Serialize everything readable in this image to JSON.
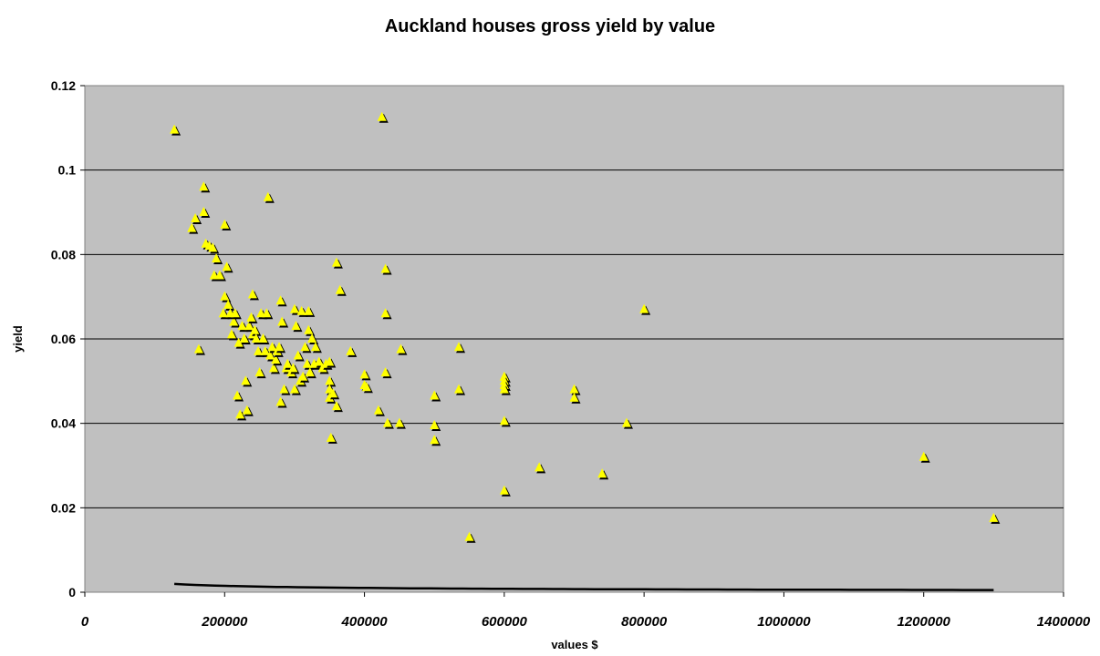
{
  "chart_data": {
    "type": "scatter",
    "title": "Auckland houses gross yield by value",
    "xlabel": "values $",
    "ylabel": "yield",
    "xlim": [
      0,
      1400000
    ],
    "ylim": [
      0,
      0.12
    ],
    "x_ticks": [
      "0",
      "200000",
      "400000",
      "600000",
      "800000",
      "1000000",
      "1200000",
      "1400000"
    ],
    "y_ticks": [
      "0",
      "0.02",
      "0.04",
      "0.06",
      "0.08",
      "0.1",
      "0.12"
    ],
    "grid": "horizontal",
    "plot_background": "#c0c0c0",
    "marker_color": "#ffff00",
    "marker_shadow_color": "#000000",
    "trendline_color": "#000000",
    "series": [
      {
        "marker": "triangle",
        "points": [
          [
            128000,
            0.1095
          ],
          [
            153000,
            0.0862
          ],
          [
            158000,
            0.0885
          ],
          [
            163000,
            0.0575
          ],
          [
            170000,
            0.096
          ],
          [
            170000,
            0.09
          ],
          [
            173000,
            0.0825
          ],
          [
            178000,
            0.082
          ],
          [
            183000,
            0.0815
          ],
          [
            185000,
            0.075
          ],
          [
            188000,
            0.079
          ],
          [
            193000,
            0.075
          ],
          [
            198000,
            0.066
          ],
          [
            200000,
            0.07
          ],
          [
            200000,
            0.087
          ],
          [
            203000,
            0.077
          ],
          [
            205000,
            0.068
          ],
          [
            208000,
            0.066
          ],
          [
            210000,
            0.061
          ],
          [
            213000,
            0.064
          ],
          [
            215000,
            0.066
          ],
          [
            218000,
            0.0465
          ],
          [
            220000,
            0.059
          ],
          [
            222000,
            0.042
          ],
          [
            225000,
            0.063
          ],
          [
            228000,
            0.06
          ],
          [
            230000,
            0.05
          ],
          [
            232000,
            0.043
          ],
          [
            235000,
            0.063
          ],
          [
            238000,
            0.065
          ],
          [
            240000,
            0.061
          ],
          [
            240000,
            0.0705
          ],
          [
            243000,
            0.062
          ],
          [
            245000,
            0.06
          ],
          [
            248000,
            0.057
          ],
          [
            250000,
            0.052
          ],
          [
            252000,
            0.066
          ],
          [
            255000,
            0.06
          ],
          [
            258000,
            0.057
          ],
          [
            260000,
            0.066
          ],
          [
            262000,
            0.0935
          ],
          [
            265000,
            0.056
          ],
          [
            268000,
            0.058
          ],
          [
            270000,
            0.053
          ],
          [
            273000,
            0.055
          ],
          [
            275000,
            0.057
          ],
          [
            278000,
            0.058
          ],
          [
            280000,
            0.045
          ],
          [
            280000,
            0.069
          ],
          [
            282000,
            0.064
          ],
          [
            285000,
            0.048
          ],
          [
            288000,
            0.053
          ],
          [
            290000,
            0.054
          ],
          [
            295000,
            0.052
          ],
          [
            298000,
            0.053
          ],
          [
            300000,
            0.048
          ],
          [
            300000,
            0.067
          ],
          [
            302000,
            0.063
          ],
          [
            305000,
            0.056
          ],
          [
            308000,
            0.05
          ],
          [
            310000,
            0.0665
          ],
          [
            312000,
            0.051
          ],
          [
            315000,
            0.058
          ],
          [
            318000,
            0.054
          ],
          [
            320000,
            0.0665
          ],
          [
            320000,
            0.062
          ],
          [
            322000,
            0.052
          ],
          [
            325000,
            0.06
          ],
          [
            328000,
            0.054
          ],
          [
            330000,
            0.058
          ],
          [
            335000,
            0.0545
          ],
          [
            340000,
            0.053
          ],
          [
            345000,
            0.054
          ],
          [
            350000,
            0.0545
          ],
          [
            350000,
            0.05
          ],
          [
            350000,
            0.048
          ],
          [
            350000,
            0.046
          ],
          [
            352000,
            0.0365
          ],
          [
            355000,
            0.047
          ],
          [
            360000,
            0.044
          ],
          [
            360000,
            0.078
          ],
          [
            365000,
            0.0715
          ],
          [
            380000,
            0.057
          ],
          [
            400000,
            0.0515
          ],
          [
            400000,
            0.049
          ],
          [
            403000,
            0.0485
          ],
          [
            420000,
            0.043
          ],
          [
            425000,
            0.1125
          ],
          [
            430000,
            0.0765
          ],
          [
            430000,
            0.066
          ],
          [
            430000,
            0.052
          ],
          [
            433000,
            0.04
          ],
          [
            450000,
            0.04
          ],
          [
            452000,
            0.0575
          ],
          [
            500000,
            0.0465
          ],
          [
            500000,
            0.0395
          ],
          [
            500000,
            0.036
          ],
          [
            535000,
            0.058
          ],
          [
            535000,
            0.048
          ],
          [
            550000,
            0.013
          ],
          [
            600000,
            0.051
          ],
          [
            600000,
            0.05
          ],
          [
            600000,
            0.049
          ],
          [
            600000,
            0.048
          ],
          [
            600000,
            0.0405
          ],
          [
            600000,
            0.024
          ],
          [
            650000,
            0.0295
          ],
          [
            700000,
            0.048
          ],
          [
            700000,
            0.046
          ],
          [
            740000,
            0.028
          ],
          [
            775000,
            0.04
          ],
          [
            800000,
            0.067
          ],
          [
            1200000,
            0.032
          ],
          [
            1300000,
            0.0175
          ]
        ]
      }
    ],
    "trendline": {
      "type": "power",
      "a": 1.65,
      "b": -0.573,
      "x_range": [
        128000,
        1300000
      ]
    }
  }
}
